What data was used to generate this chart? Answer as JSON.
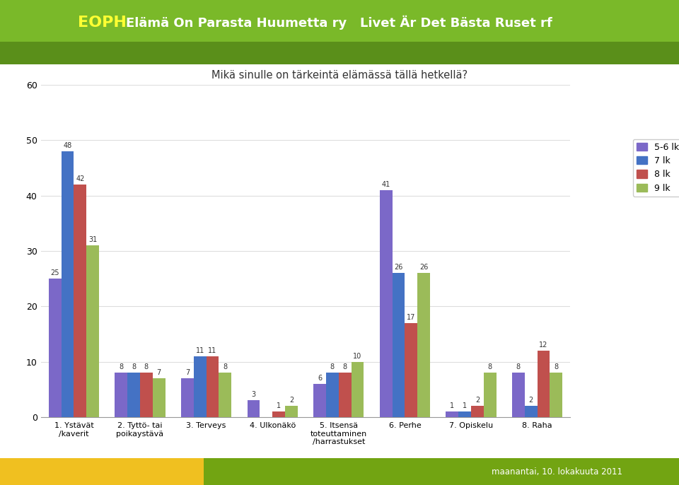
{
  "title": "Mikä sinulle on tärkeintä elämässä tällä hetkellä?",
  "header_text": "EOPH  Elämä On Parasta Huumetta ry   Livet Är Det Bästa Ruset rf",
  "footer_text": "maanantai, 10. lokakuuta 2011",
  "categories": [
    "1. Ystävät\n/kaverit",
    "2. Tyttö- tai\npoikaystävä",
    "3. Terveys",
    "4. Ulkonäkö",
    "5. Itsensä\ntoteuttaminen\n/harrastukset",
    "6. Perhe",
    "7. Opiskelu",
    "8. Raha"
  ],
  "series": {
    "5-6 lk": [
      25,
      8,
      7,
      3,
      6,
      41,
      1,
      8
    ],
    "7 lk": [
      48,
      8,
      11,
      0,
      8,
      26,
      1,
      2
    ],
    "8 lk": [
      42,
      8,
      11,
      1,
      8,
      17,
      2,
      12
    ],
    "9 lk": [
      31,
      7,
      8,
      2,
      10,
      26,
      8,
      8
    ]
  },
  "colors": {
    "5-6 lk": "#7B68C8",
    "7 lk": "#4472C4",
    "8 lk": "#C0504D",
    "9 lk": "#9BBB59"
  },
  "ylim": [
    0,
    60
  ],
  "yticks": [
    0,
    10,
    20,
    30,
    40,
    50,
    60
  ],
  "header_bg_top": "#8DC63F",
  "header_bg_bottom": "#5C9E1A",
  "footer_bg_left": "#F5D020",
  "footer_bg_right": "#4CAF10",
  "chart_bg": "#FFFFFF",
  "grid_color": "#DDDDDD",
  "bar_width": 0.19,
  "header_eoph_color": "#FFFF00",
  "header_main_color": "#FFFFFF",
  "title_color": "#333333",
  "footer_text_color": "#FFFFFF"
}
